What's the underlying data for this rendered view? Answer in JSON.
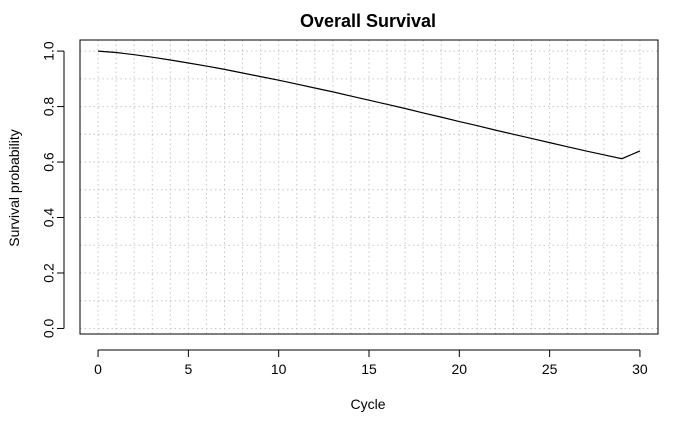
{
  "chart_data": {
    "type": "line",
    "title": "Overall Survival",
    "xlabel": "Cycle",
    "ylabel": "Survival probability",
    "xlim": [
      -1,
      31
    ],
    "ylim": [
      -0.02,
      1.04
    ],
    "x_ticks": [
      0,
      5,
      10,
      15,
      20,
      25,
      30
    ],
    "x_tick_labels": [
      "0",
      "5",
      "10",
      "15",
      "20",
      "25",
      "30"
    ],
    "y_ticks": [
      0.0,
      0.2,
      0.4,
      0.6,
      0.8,
      1.0
    ],
    "y_tick_labels": [
      "0.0",
      "0.2",
      "0.4",
      "0.6",
      "0.8",
      "1.0"
    ],
    "x_grid": [
      0,
      1,
      2,
      3,
      4,
      5,
      6,
      7,
      8,
      9,
      10,
      11,
      12,
      13,
      14,
      15,
      16,
      17,
      18,
      19,
      20,
      21,
      22,
      23,
      24,
      25,
      26,
      27,
      28,
      29,
      30
    ],
    "y_grid": [
      0.0,
      0.1,
      0.2,
      0.3,
      0.4,
      0.5,
      0.6,
      0.7,
      0.8,
      0.9,
      1.0
    ],
    "grid": true,
    "series": [
      {
        "color": "#000000",
        "x": [
          0,
          1,
          2,
          3,
          4,
          5,
          6,
          7,
          8,
          9,
          10,
          11,
          12,
          13,
          14,
          15,
          16,
          17,
          18,
          19,
          20,
          21,
          22,
          23,
          24,
          25,
          26,
          27,
          28,
          29,
          30
        ],
        "y": [
          1.0,
          0.995,
          0.987,
          0.978,
          0.968,
          0.957,
          0.946,
          0.934,
          0.921,
          0.908,
          0.895,
          0.881,
          0.867,
          0.853,
          0.838,
          0.823,
          0.808,
          0.793,
          0.777,
          0.762,
          0.746,
          0.731,
          0.715,
          0.7,
          0.685,
          0.67,
          0.655,
          0.64,
          0.626,
          0.612,
          0.64
        ]
      }
    ]
  }
}
